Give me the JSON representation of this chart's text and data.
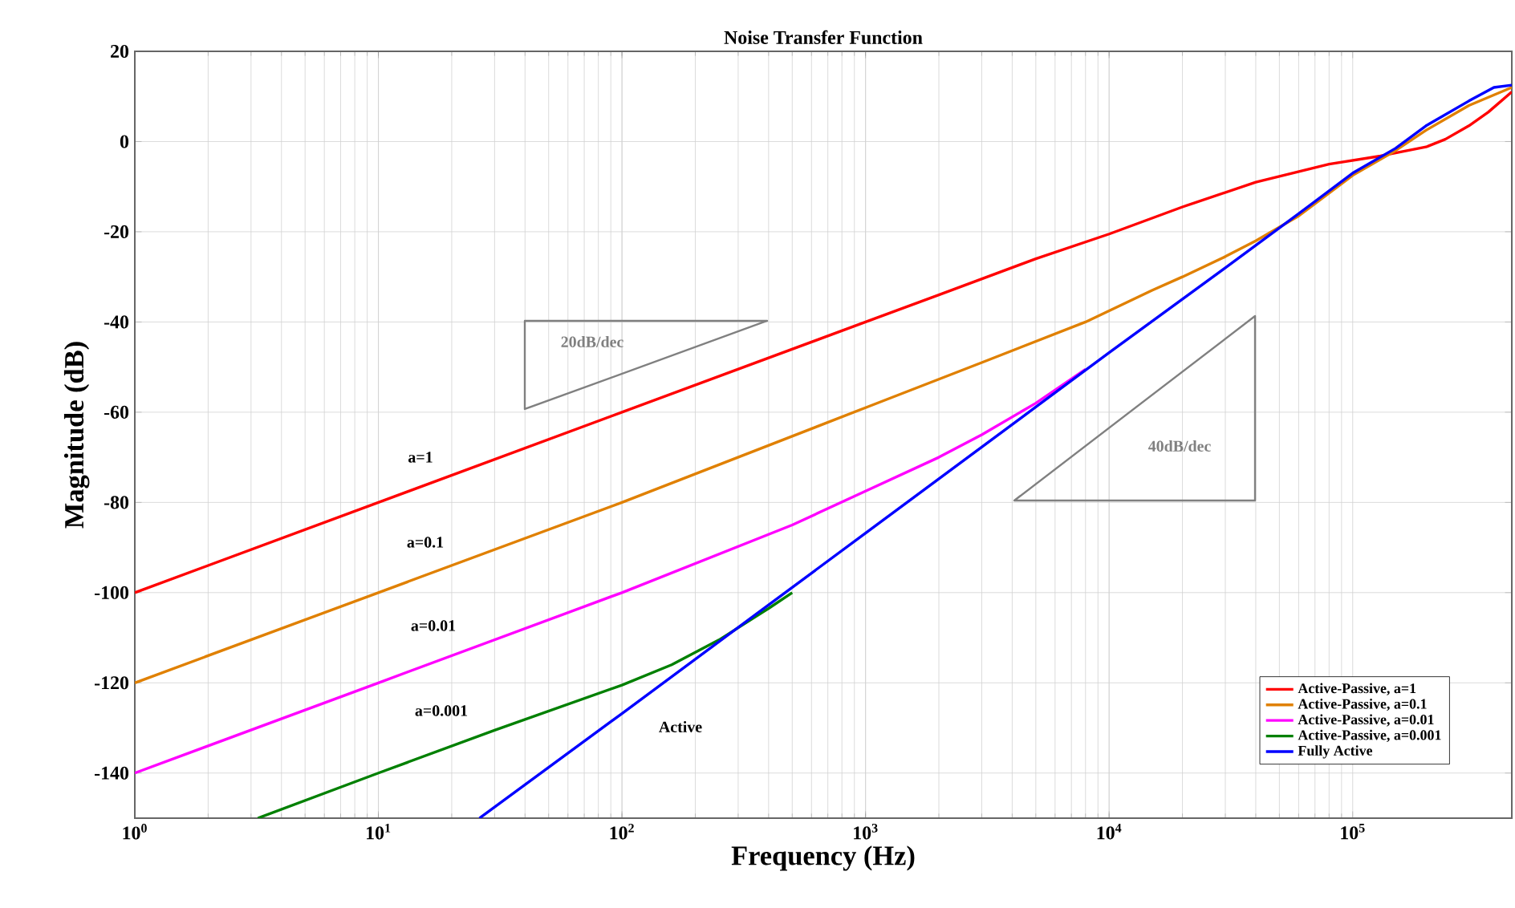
{
  "chart_data": {
    "type": "line",
    "title": "Noise Transfer Function",
    "xlabel": "Frequency (Hz)",
    "ylabel": "Magnitude (dB)",
    "log": "x",
    "grid": true,
    "legend": "bottom right",
    "xlim": [
      1,
      450000
    ],
    "ylim": [
      -150,
      20
    ],
    "xticks": [
      {
        "value": 1,
        "label": "10$^{0}$"
      },
      {
        "value": 10,
        "label": "10$^{1}$"
      },
      {
        "value": 100,
        "label": "10$^{2}$"
      },
      {
        "value": 1000,
        "label": "10$^{3}$"
      },
      {
        "value": 10000,
        "label": "10$^{4}$"
      },
      {
        "value": 100000,
        "label": "10$^{5}$"
      }
    ],
    "yticks": [
      -140,
      -120,
      -100,
      -80,
      -60,
      -40,
      -20,
      0,
      20
    ],
    "series": [
      {
        "name": "Active-Passive, a=1",
        "color": "#ff0000",
        "x": [
          1,
          10,
          100,
          1000,
          2000,
          5000,
          10000,
          20000,
          40000,
          80000,
          130000,
          200000,
          240000,
          300000,
          360000,
          450000
        ],
        "values": [
          -100,
          -80,
          -60,
          -40,
          -34,
          -26,
          -20.5,
          -14.5,
          -9,
          -5,
          -3.2,
          -1.2,
          0.5,
          3.5,
          6.5,
          11
        ]
      },
      {
        "name": "Active-Passive, a=0.1",
        "color": "#e08000",
        "x": [
          1,
          10,
          100,
          1000,
          3000,
          8000,
          15000,
          20000,
          30000,
          40000,
          60000,
          100000,
          150000,
          200000,
          300000,
          450000
        ],
        "values": [
          -120,
          -100,
          -80,
          -59,
          -49,
          -40,
          -33,
          -30,
          -25.5,
          -22,
          -16.5,
          -7.5,
          -2,
          2.5,
          8,
          12
        ]
      },
      {
        "name": "Active-Passive, a=0.01",
        "color": "#ff00ff",
        "x": [
          1,
          10,
          100,
          500,
          1000,
          2000,
          3000,
          5000,
          8000
        ],
        "values": [
          -140,
          -120,
          -100,
          -85,
          -77.5,
          -70,
          -65,
          -58,
          -50.5
        ]
      },
      {
        "name": "Active-Passive, a=0.001",
        "color": "#008000",
        "x": [
          3.2,
          10,
          30,
          100,
          160,
          250,
          400,
          500
        ],
        "values": [
          -150,
          -140,
          -130.5,
          -120.5,
          -116,
          -110.5,
          -103.5,
          -100
        ]
      },
      {
        "name": "Fully Active",
        "color": "#0000ff",
        "x": [
          26,
          100,
          1000,
          10000,
          30000,
          60000,
          100000,
          150000,
          200000,
          300000,
          380000,
          450000
        ],
        "values": [
          -150,
          -126.8,
          -86.8,
          -46.8,
          -28,
          -16,
          -7,
          -1.5,
          3.5,
          9,
          12,
          12.5
        ]
      }
    ],
    "annotations": [
      "a=1",
      "a=0.1",
      "a=0.01",
      "a=0.001",
      "Active",
      "20dB/dec",
      "40dB/dec"
    ]
  }
}
